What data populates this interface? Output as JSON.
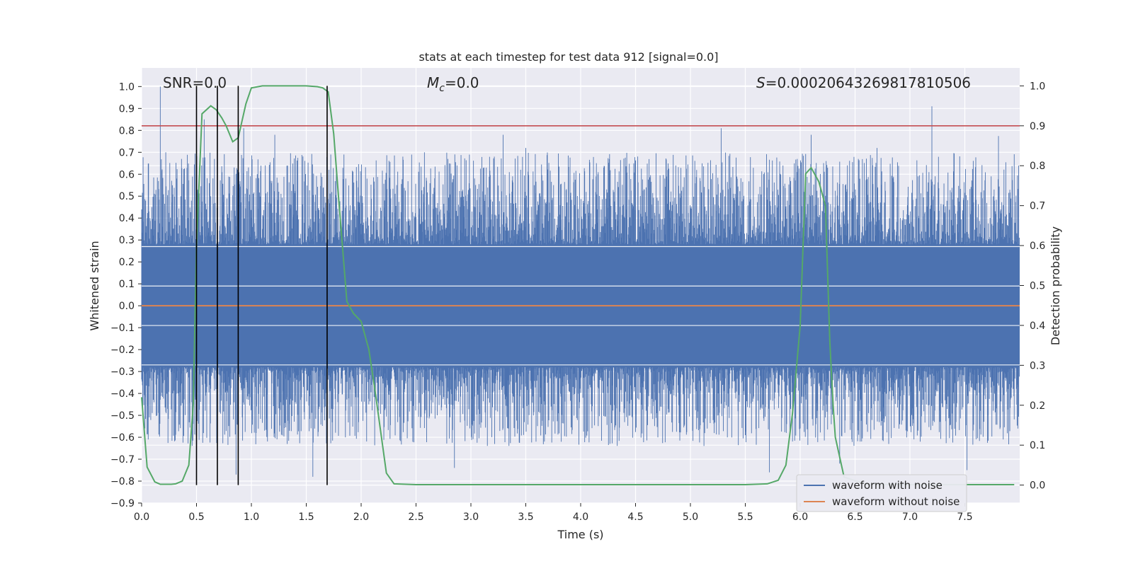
{
  "chart_data": {
    "type": "line",
    "title": "stats at each timestep for test data 912 [signal=0.0]",
    "xlabel": "Time (s)",
    "ylabel": "Whitened strain",
    "y2label": "Detection probability",
    "xlim": [
      0.0,
      8.0
    ],
    "ylim": [
      -0.9,
      1.085
    ],
    "y2lim": [
      -0.045,
      1.045
    ],
    "xticks": [
      0.0,
      0.5,
      1.0,
      1.5,
      2.0,
      2.5,
      3.0,
      3.5,
      4.0,
      4.5,
      5.0,
      5.5,
      6.0,
      6.5,
      7.0,
      7.5
    ],
    "yticks": [
      -0.9,
      -0.8,
      -0.7,
      -0.6,
      -0.5,
      -0.4,
      -0.3,
      -0.2,
      -0.1,
      0.0,
      0.1,
      0.2,
      0.3,
      0.4,
      0.5,
      0.6,
      0.7,
      0.8,
      0.9,
      1.0
    ],
    "y2ticks": [
      0.0,
      0.1,
      0.2,
      0.3,
      0.4,
      0.5,
      0.6,
      0.7,
      0.8,
      0.9,
      1.0
    ],
    "grid": true,
    "legend_position": "bottom-right",
    "annotations": [
      {
        "text": "SNR=0.0",
        "x_frac": "left"
      },
      {
        "text": "M_c=0.0",
        "main": "M",
        "sub": "c",
        "rest": "=0.0"
      },
      {
        "text": "S=0.00020643269817810506",
        "main": "S",
        "rest": "=0.00020643269817810506"
      }
    ],
    "series": [
      {
        "name": "waveform with noise",
        "color": "#4c72b0",
        "description": "whitened noise envelope",
        "peaks": [
          {
            "x": 0.17,
            "y": 1.0
          },
          {
            "x": 0.22,
            "y": 0.7
          },
          {
            "x": 0.57,
            "y": 0.85
          },
          {
            "x": 0.93,
            "y": 0.81
          },
          {
            "x": 5.28,
            "y": 0.81
          },
          {
            "x": 7.2,
            "y": 0.91
          },
          {
            "x": 3.5,
            "y": 0.72
          },
          {
            "x": 6.7,
            "y": 0.72
          },
          {
            "x": 1.56,
            "y": -0.78
          },
          {
            "x": 2.85,
            "y": -0.74
          },
          {
            "x": 5.72,
            "y": -0.76
          },
          {
            "x": 7.52,
            "y": -0.75
          },
          {
            "x": 0.86,
            "y": -0.77
          },
          {
            "x": 6.36,
            "y": -0.72
          }
        ]
      },
      {
        "name": "waveform without noise",
        "color": "#dd8452",
        "x": [
          0.0,
          8.0
        ],
        "y": [
          0.0,
          0.0
        ]
      },
      {
        "name": "detection probability",
        "color": "#55a868",
        "axis": "right",
        "x": [
          0.0,
          0.05,
          0.12,
          0.17,
          0.22,
          0.27,
          0.31,
          0.37,
          0.43,
          0.47,
          0.5,
          0.55,
          0.63,
          0.68,
          0.73,
          0.77,
          0.83,
          0.88,
          0.95,
          1.0,
          1.1,
          1.3,
          1.5,
          1.6,
          1.65,
          1.7,
          1.75,
          1.8,
          1.87,
          1.93,
          2.0,
          2.07,
          2.13,
          2.18,
          2.23,
          2.3,
          2.5,
          3.0,
          4.0,
          5.0,
          5.5,
          5.7,
          5.8,
          5.87,
          5.93,
          6.0,
          6.05,
          6.1,
          6.17,
          6.23,
          6.27,
          6.3,
          6.32,
          6.4,
          6.6,
          7.0,
          7.5,
          7.95
        ],
        "y": [
          0.22,
          0.045,
          0.008,
          0.002,
          0.002,
          0.002,
          0.003,
          0.01,
          0.05,
          0.2,
          0.6,
          0.93,
          0.95,
          0.94,
          0.92,
          0.9,
          0.86,
          0.87,
          0.955,
          0.995,
          1.0,
          1.0,
          1.0,
          0.998,
          0.995,
          0.985,
          0.88,
          0.7,
          0.46,
          0.43,
          0.41,
          0.34,
          0.23,
          0.13,
          0.03,
          0.003,
          0.001,
          0.001,
          0.001,
          0.001,
          0.001,
          0.003,
          0.012,
          0.05,
          0.18,
          0.4,
          0.78,
          0.795,
          0.76,
          0.7,
          0.36,
          0.2,
          0.12,
          0.02,
          0.002,
          0.001,
          0.001,
          0.001
        ]
      }
    ],
    "threshold": {
      "color": "#c44e52",
      "y2": 0.9
    },
    "vlines": [
      0.5,
      0.69,
      0.88,
      1.69
    ],
    "vline_color": "#000000",
    "legend": [
      "waveform with noise",
      "waveform without noise"
    ]
  }
}
